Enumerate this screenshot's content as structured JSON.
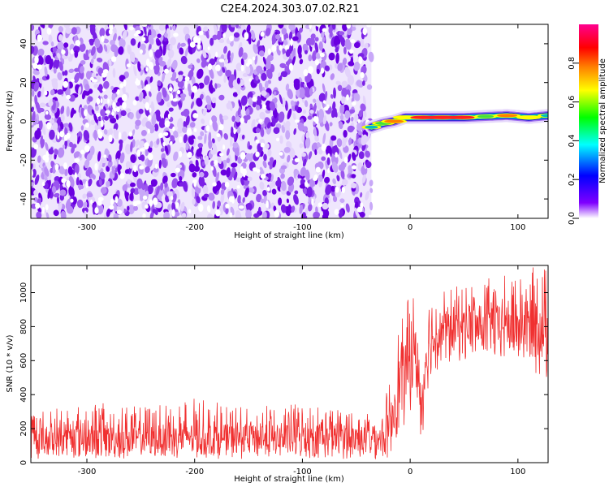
{
  "title": "C2E4.2024.303.07.02.R21",
  "chart_data": [
    {
      "type": "heatmap",
      "xlabel": "Height of straight line (km)",
      "ylabel": "Frequency (Hz)",
      "xlim": [
        -352,
        128
      ],
      "ylim": [
        -50,
        50
      ],
      "x_ticks": [
        -300,
        -200,
        -100,
        0,
        100
      ],
      "y_ticks": [
        -40,
        -20,
        0,
        20,
        40
      ],
      "colorbar": {
        "label": "Normalized spectral amplitude",
        "range": [
          0,
          1
        ],
        "ticks": [
          0.0,
          0.2,
          0.4,
          0.6,
          0.8
        ],
        "tick_labels": [
          "0.0",
          "0.2",
          "0.4",
          "0.6",
          "0.8"
        ],
        "colors": [
          "#ffffff",
          "#7f00ff",
          "#0000ff",
          "#00ffff",
          "#00ff00",
          "#ffff00",
          "#ff8000",
          "#ff0000",
          "#ff00ff"
        ]
      },
      "noise_region": {
        "x_range": [
          -352,
          -36
        ],
        "amplitude_range": [
          0.0,
          0.25
        ]
      },
      "signal_band": [
        {
          "x": -36,
          "y": -3,
          "amplitude": 0.4
        },
        {
          "x": -25,
          "y": -1,
          "amplitude": 0.6
        },
        {
          "x": -15,
          "y": 0,
          "amplitude": 0.8
        },
        {
          "x": -5,
          "y": 2,
          "amplitude": 0.7
        },
        {
          "x": 10,
          "y": 2,
          "amplitude": 0.9
        },
        {
          "x": 30,
          "y": 2,
          "amplitude": 0.95
        },
        {
          "x": 50,
          "y": 2,
          "amplitude": 0.9
        },
        {
          "x": 70,
          "y": 2.5,
          "amplitude": 0.6
        },
        {
          "x": 90,
          "y": 3,
          "amplitude": 0.85
        },
        {
          "x": 110,
          "y": 2,
          "amplitude": 0.7
        },
        {
          "x": 128,
          "y": 3,
          "amplitude": 0.5
        }
      ]
    },
    {
      "type": "line",
      "xlabel": "Height of straight line (km)",
      "ylabel": "SNR (10 * v/v)",
      "xlim": [
        -352,
        128
      ],
      "ylim": [
        0,
        1160
      ],
      "x_ticks": [
        -300,
        -200,
        -100,
        0,
        100
      ],
      "y_ticks": [
        0,
        200,
        400,
        600,
        800,
        1000
      ],
      "color": "#f03030",
      "series": [
        {
          "x": [
            -352,
            -300,
            -250,
            -200,
            -150,
            -100,
            -50,
            -25,
            -18,
            -12,
            -5,
            0,
            5,
            10,
            15,
            20,
            30,
            50,
            70,
            90,
            110,
            128
          ],
          "y_mean": [
            130,
            130,
            130,
            135,
            135,
            135,
            140,
            140,
            200,
            450,
            520,
            580,
            620,
            300,
            650,
            700,
            790,
            800,
            790,
            800,
            790,
            780
          ],
          "y_min": [
            20,
            20,
            20,
            20,
            20,
            20,
            20,
            20,
            20,
            150,
            180,
            300,
            420,
            40,
            400,
            500,
            560,
            600,
            590,
            580,
            550,
            450
          ],
          "y_max": [
            320,
            360,
            330,
            380,
            330,
            350,
            320,
            300,
            560,
            780,
            880,
            1020,
            1030,
            620,
            950,
            1000,
            1020,
            1050,
            1080,
            1110,
            1150,
            1160
          ]
        }
      ]
    }
  ]
}
